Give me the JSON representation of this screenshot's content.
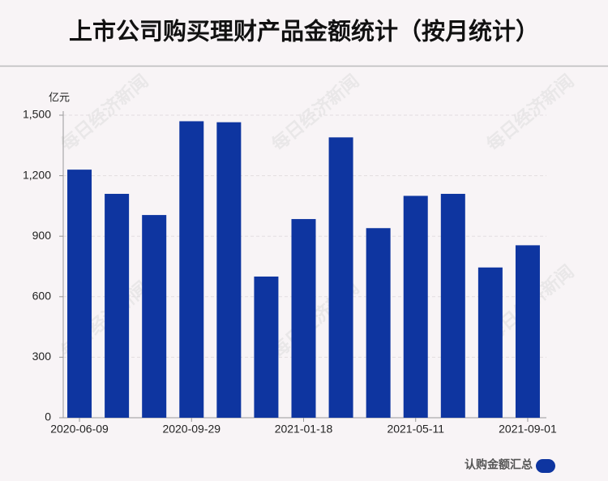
{
  "chart_data": {
    "type": "bar",
    "title": "上市公司购买理财产品金额统计（按月统计）",
    "y_unit": "亿元",
    "watermark": "每日经济新闻",
    "categories": [
      "2020-06-09",
      null,
      null,
      "2020-09-29",
      null,
      null,
      "2021-01-18",
      null,
      null,
      "2021-05-11",
      null,
      null,
      "2021-09-01"
    ],
    "series": [
      {
        "name": "认购金额汇总",
        "color": "#0e35a0",
        "values": [
          1230,
          1110,
          1005,
          1470,
          1465,
          700,
          985,
          1390,
          940,
          1100,
          1110,
          745,
          855
        ]
      }
    ],
    "ylim": [
      0,
      1500
    ],
    "yticks": [
      0,
      300,
      600,
      900,
      {
        "value": 1200,
        "label": "1,200"
      },
      {
        "value": 1500,
        "label": "1,500"
      }
    ],
    "grid": true
  }
}
